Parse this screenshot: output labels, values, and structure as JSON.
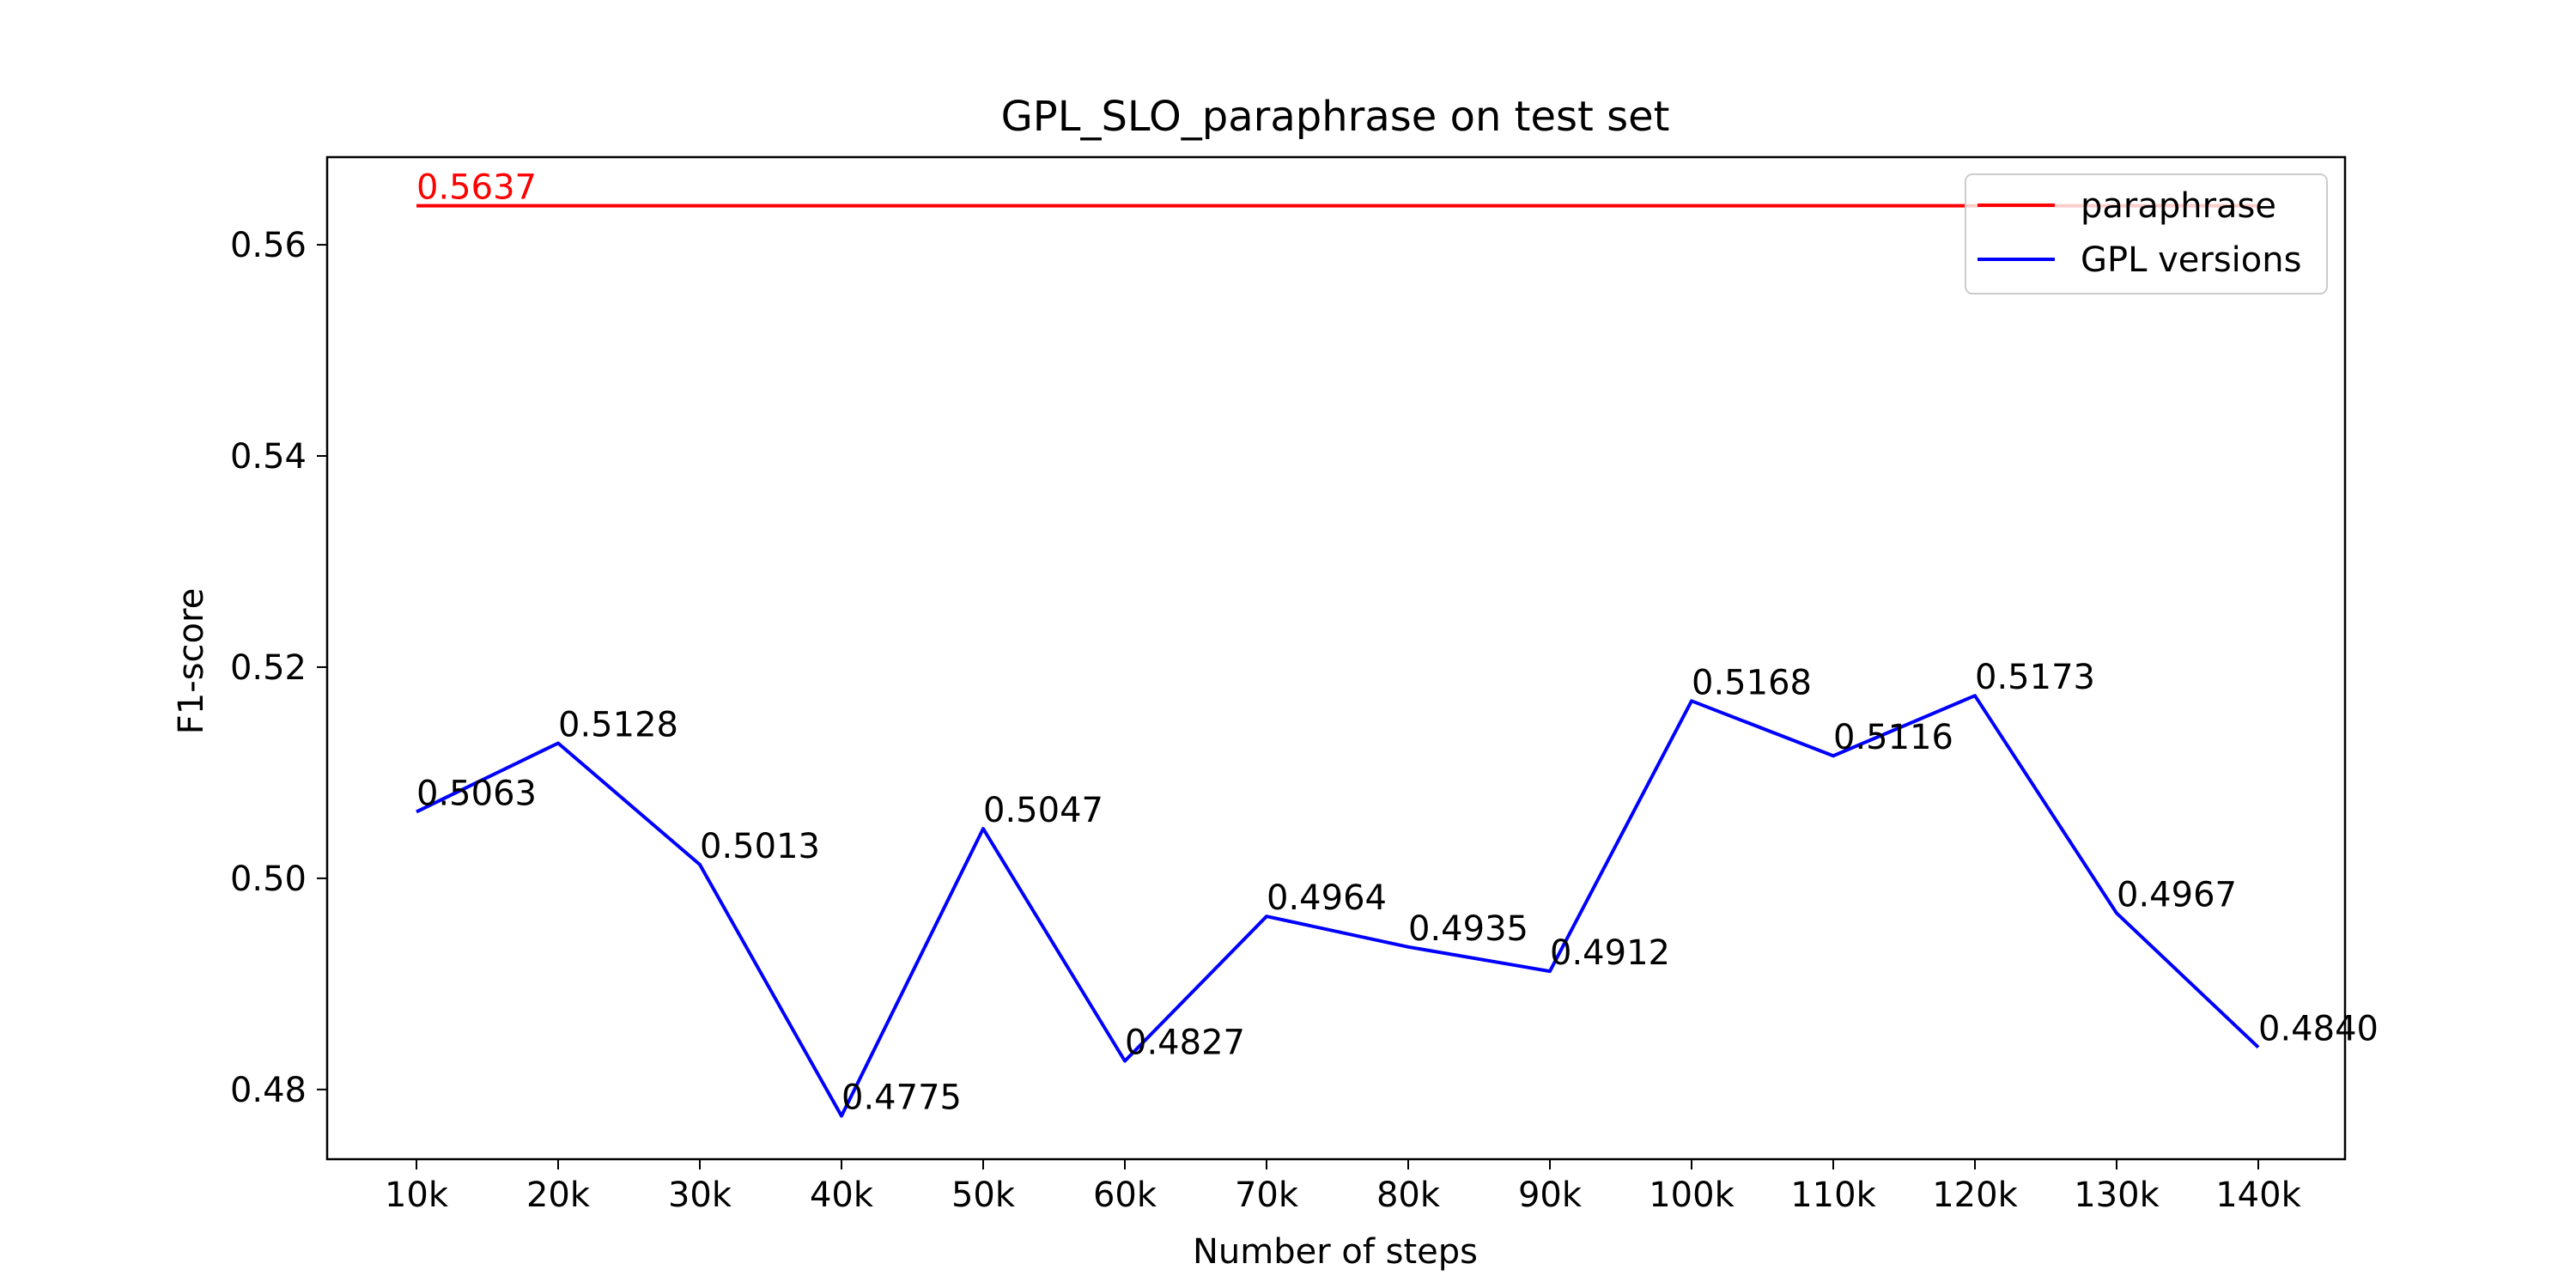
{
  "chart_data": {
    "type": "line",
    "title": "GPL_SLO_paraphrase on test set",
    "xlabel": "Number of steps",
    "ylabel": "F1-score",
    "categories": [
      "10k",
      "20k",
      "30k",
      "40k",
      "50k",
      "60k",
      "70k",
      "80k",
      "90k",
      "100k",
      "110k",
      "120k",
      "130k",
      "140k"
    ],
    "ylim": [
      0.4734,
      0.5683
    ],
    "yticks": [
      0.48,
      0.5,
      0.52,
      0.54,
      0.56
    ],
    "ytick_labels": [
      "0.48",
      "0.50",
      "0.52",
      "0.54",
      "0.56"
    ],
    "grid": false,
    "legend_position": "top-right",
    "series": [
      {
        "name": "paraphrase",
        "color": "#ff0000",
        "style": "constant",
        "values": [
          0.5637,
          0.5637,
          0.5637,
          0.5637,
          0.5637,
          0.5637,
          0.5637,
          0.5637,
          0.5637,
          0.5637,
          0.5637,
          0.5637,
          0.5637,
          0.5637
        ],
        "labels": [
          "0.5637"
        ]
      },
      {
        "name": "GPL versions",
        "color": "#0000ff",
        "style": "line",
        "values": [
          0.5063,
          0.5128,
          0.5013,
          0.4775,
          0.5047,
          0.4827,
          0.4964,
          0.4935,
          0.4912,
          0.5168,
          0.5116,
          0.5173,
          0.4967,
          0.484
        ],
        "labels": [
          "0.5063",
          "0.5128",
          "0.5013",
          "0.4775",
          "0.5047",
          "0.4827",
          "0.4964",
          "0.4935",
          "0.4912",
          "0.5168",
          "0.5116",
          "0.5173",
          "0.4967",
          "0.4840"
        ]
      }
    ]
  }
}
